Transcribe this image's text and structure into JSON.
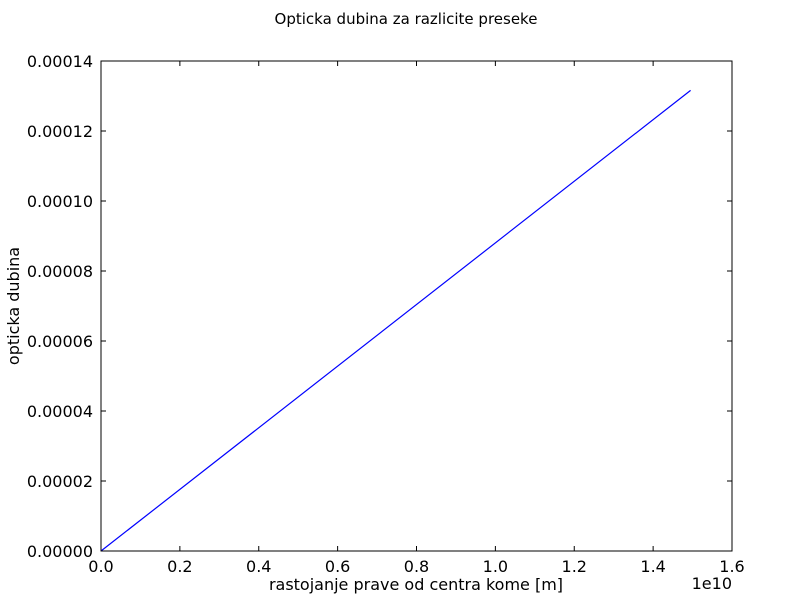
{
  "chart_data": {
    "type": "line",
    "title": "Opticka dubina za razlicite preseke",
    "xlabel": "rastojanje prave od centra kome [m]",
    "ylabel": "opticka dubina",
    "x_offset_text": "1e10",
    "x_multiplier": 10000000000,
    "xlim": [
      0,
      16000000000
    ],
    "ylim": [
      0,
      0.00014
    ],
    "xticks": [
      0,
      2000000000,
      4000000000,
      6000000000,
      8000000000,
      10000000000,
      12000000000,
      14000000000,
      16000000000
    ],
    "xtick_labels": [
      "0.0",
      "0.2",
      "0.4",
      "0.6",
      "0.8",
      "1.0",
      "1.2",
      "1.4",
      "1.6"
    ],
    "yticks": [
      0,
      2e-05,
      4e-05,
      6e-05,
      8e-05,
      0.0001,
      0.00012,
      0.00014
    ],
    "ytick_labels": [
      "0.00000",
      "0.00002",
      "0.00004",
      "0.00006",
      "0.00008",
      "0.00010",
      "0.00012",
      "0.00014"
    ],
    "grid": false,
    "series": [
      {
        "color": "#0000ff",
        "x": [
          0,
          14950000000
        ],
        "y": [
          0,
          0.0001316
        ]
      }
    ]
  }
}
